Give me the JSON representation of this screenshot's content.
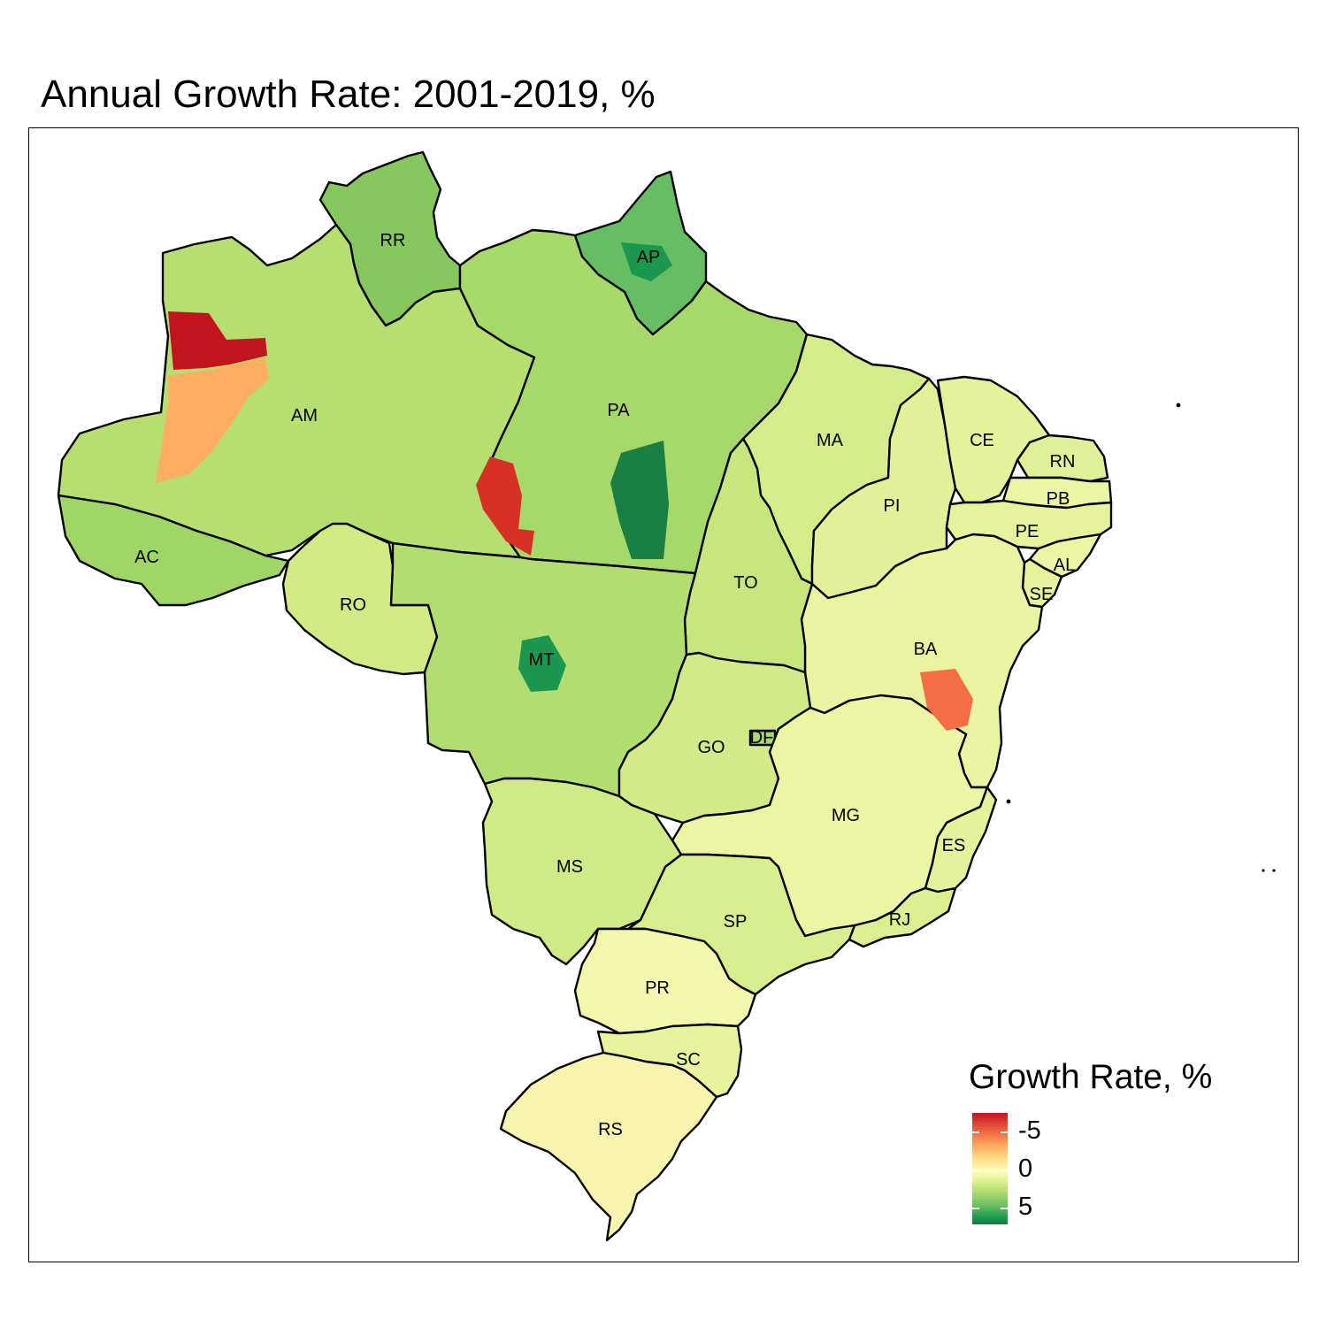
{
  "title": "Annual Growth Rate: 2001-2019, %",
  "legend": {
    "title": "Growth Rate, %",
    "ticks": [
      "-5",
      "0",
      "5"
    ],
    "palette": [
      "#c2141e",
      "#f46d43",
      "#fdae61",
      "#fee08b",
      "#ffffbf",
      "#d9ef8b",
      "#a6d96a",
      "#66bd63",
      "#1a9850"
    ]
  },
  "states": [
    {
      "abbr": "RR",
      "color": "#86c75e"
    },
    {
      "abbr": "AP",
      "color": "#66bd63"
    },
    {
      "abbr": "AM",
      "color": "#b6df72"
    },
    {
      "abbr": "PA",
      "color": "#a6d96a"
    },
    {
      "abbr": "MA",
      "color": "#d4ec8a"
    },
    {
      "abbr": "CE",
      "color": "#e4f29a"
    },
    {
      "abbr": "RN",
      "color": "#e0f096"
    },
    {
      "abbr": "PB",
      "color": "#ecf5a4"
    },
    {
      "abbr": "PE",
      "color": "#e6f39c"
    },
    {
      "abbr": "PI",
      "color": "#e2f197"
    },
    {
      "abbr": "AL",
      "color": "#ecf5a4"
    },
    {
      "abbr": "SE",
      "color": "#e6f39c"
    },
    {
      "abbr": "AC",
      "color": "#a0d668"
    },
    {
      "abbr": "RO",
      "color": "#d2ea86"
    },
    {
      "abbr": "TO",
      "color": "#c6e67e"
    },
    {
      "abbr": "MT",
      "color": "#b2dd70"
    },
    {
      "abbr": "BA",
      "color": "#eaf4a0"
    },
    {
      "abbr": "GO",
      "color": "#d2eb88"
    },
    {
      "abbr": "DF",
      "color": "#a6d96a"
    },
    {
      "abbr": "MG",
      "color": "#ecf5a4"
    },
    {
      "abbr": "ES",
      "color": "#e4f29a"
    },
    {
      "abbr": "MS",
      "color": "#cfea86"
    },
    {
      "abbr": "SP",
      "color": "#d8ee8e"
    },
    {
      "abbr": "RJ",
      "color": "#dbef90"
    },
    {
      "abbr": "PR",
      "color": "#f3f8ae"
    },
    {
      "abbr": "SC",
      "color": "#e8f39e"
    },
    {
      "abbr": "RS",
      "color": "#f7f4b0"
    }
  ],
  "hotspots": [
    {
      "region": "AM",
      "color": "#c2141e"
    },
    {
      "region": "AM",
      "color": "#fdae61"
    },
    {
      "region": "PA",
      "color": "#d73027"
    },
    {
      "region": "PA",
      "color": "#1a7f42"
    },
    {
      "region": "AP",
      "color": "#1a9850"
    },
    {
      "region": "MT",
      "color": "#1a9850"
    },
    {
      "region": "BA",
      "color": "#f46d43"
    }
  ]
}
